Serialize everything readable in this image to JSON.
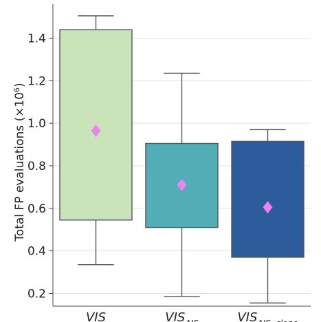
{
  "chart_data": {
    "type": "box",
    "ylabel_main": "Total FP evaluations (×10",
    "ylabel_exp": "6",
    "ylabel_close": ")",
    "ylim": [
      0.14,
      1.56
    ],
    "yticks": [
      0.2,
      0.4,
      0.6,
      0.8,
      1.0,
      1.2,
      1.4
    ],
    "ytick_labels": [
      "0.2",
      "0.4",
      "0.6",
      "0.8",
      "1.0",
      "1.2",
      "1.4"
    ],
    "grid": true,
    "boxes": [
      {
        "label": "VIS",
        "sub": "",
        "whisker_low": 0.335,
        "q1": 0.545,
        "q3": 1.44,
        "whisker_high": 1.505,
        "mean": 0.965,
        "color": "#c8e4b8"
      },
      {
        "label": "VIS",
        "sub": "AIS",
        "whisker_low": 0.185,
        "q1": 0.51,
        "q3": 0.905,
        "whisker_high": 1.235,
        "mean": 0.71,
        "color": "#52aeb6"
      },
      {
        "label": "VIS",
        "sub": "AIS, clone",
        "whisker_low": 0.155,
        "q1": 0.37,
        "q3": 0.915,
        "whisker_high": 0.97,
        "mean": 0.605,
        "color": "#2c5c9c"
      }
    ],
    "mean_marker_color": "#ee82ee"
  }
}
